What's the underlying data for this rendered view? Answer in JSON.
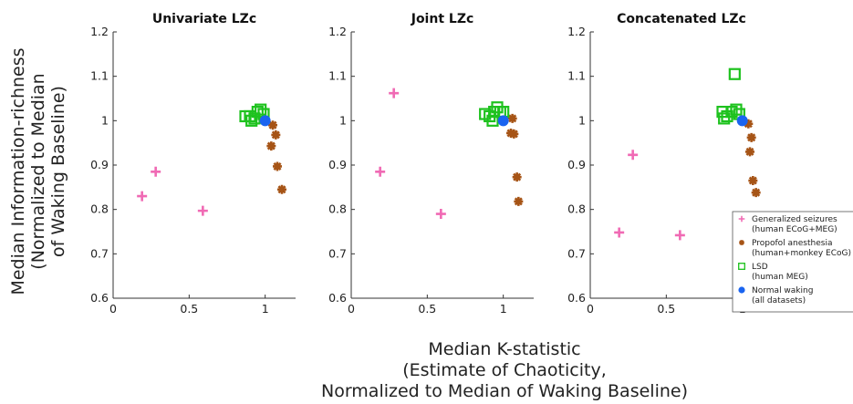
{
  "figure": {
    "ylabel_lines": [
      "Median Information-richness",
      "(Normalized to Median",
      "of Waking Baseline)"
    ],
    "xlabel_lines": [
      "Median K-statistic",
      "(Estimate of Chaoticity,",
      "Normalized to Median of Waking Baseline)"
    ]
  },
  "chart_data": [
    {
      "type": "scatter",
      "title": "Univariate LZc",
      "xlim": [
        0,
        1.2
      ],
      "ylim": [
        0.6,
        1.2
      ],
      "xticks": [
        "0",
        "0.5",
        "1"
      ],
      "yticks": [
        "0.6",
        "0.7",
        "0.8",
        "0.9",
        "1",
        "1.1",
        "1.2"
      ],
      "series": [
        {
          "name": "Generalized seizures (human ECoG+MEG)",
          "marker": "plus",
          "color": "#f06ab4",
          "points": [
            [
              0.19,
              0.83
            ],
            [
              0.28,
              0.885
            ],
            [
              0.59,
              0.797
            ]
          ]
        },
        {
          "name": "Propofol anesthesia (human+monkey ECoG)",
          "marker": "asterisk",
          "color": "#a65416",
          "points": [
            [
              1.05,
              0.99
            ],
            [
              1.07,
              0.968
            ],
            [
              1.04,
              0.943
            ],
            [
              1.08,
              0.897
            ],
            [
              1.11,
              0.845
            ]
          ]
        },
        {
          "name": "LSD (human MEG)",
          "marker": "square",
          "color": "#1ec21e",
          "points": [
            [
              0.87,
              1.01
            ],
            [
              0.9,
              1.01
            ],
            [
              0.93,
              1.005
            ],
            [
              0.95,
              1.02
            ],
            [
              0.97,
              1.025
            ],
            [
              0.99,
              1.015
            ],
            [
              0.91,
              1.0
            ]
          ]
        },
        {
          "name": "Normal waking (all datasets)",
          "marker": "dot",
          "color": "#1a64f0",
          "points": [
            [
              1.0,
              1.0
            ]
          ]
        }
      ]
    },
    {
      "type": "scatter",
      "title": "Joint LZc",
      "xlim": [
        0,
        1.2
      ],
      "ylim": [
        0.6,
        1.2
      ],
      "xticks": [
        "0",
        "0.5",
        "1"
      ],
      "yticks": [
        "0.6",
        "0.7",
        "0.8",
        "0.9",
        "1",
        "1.1",
        "1.2"
      ],
      "series": [
        {
          "name": "Generalized seizures (human ECoG+MEG)",
          "marker": "plus",
          "color": "#f06ab4",
          "points": [
            [
              0.19,
              0.885
            ],
            [
              0.28,
              1.062
            ],
            [
              0.59,
              0.79
            ]
          ]
        },
        {
          "name": "Propofol anesthesia (human+monkey ECoG)",
          "marker": "asterisk",
          "color": "#a65416",
          "points": [
            [
              1.06,
              1.005
            ],
            [
              1.05,
              0.972
            ],
            [
              1.07,
              0.97
            ],
            [
              1.09,
              0.873
            ],
            [
              1.1,
              0.818
            ]
          ]
        },
        {
          "name": "LSD (human MEG)",
          "marker": "square",
          "color": "#1ec21e",
          "points": [
            [
              0.88,
              1.015
            ],
            [
              0.91,
              1.01
            ],
            [
              0.94,
              1.02
            ],
            [
              0.96,
              1.03
            ],
            [
              0.98,
              1.02
            ],
            [
              0.93,
              1.0
            ],
            [
              1.0,
              1.02
            ]
          ]
        },
        {
          "name": "Normal waking (all datasets)",
          "marker": "dot",
          "color": "#1a64f0",
          "points": [
            [
              1.0,
              1.0
            ]
          ]
        }
      ]
    },
    {
      "type": "scatter",
      "title": "Concatenated LZc",
      "xlim": [
        0,
        1.2
      ],
      "ylim": [
        0.6,
        1.2
      ],
      "xticks": [
        "0",
        "0.5",
        "1"
      ],
      "yticks": [
        "0.6",
        "0.7",
        "0.8",
        "0.9",
        "1",
        "1.1",
        "1.2"
      ],
      "legend_position": "lower-right",
      "series": [
        {
          "name": "Generalized seizures (human ECoG+MEG)",
          "marker": "plus",
          "color": "#f06ab4",
          "points": [
            [
              0.19,
              0.748
            ],
            [
              0.28,
              0.923
            ],
            [
              0.59,
              0.742
            ]
          ]
        },
        {
          "name": "Propofol anesthesia (human+monkey ECoG)",
          "marker": "asterisk",
          "color": "#a65416",
          "points": [
            [
              1.04,
              0.993
            ],
            [
              1.06,
              0.962
            ],
            [
              1.05,
              0.93
            ],
            [
              1.07,
              0.865
            ],
            [
              1.09,
              0.838
            ]
          ]
        },
        {
          "name": "LSD (human MEG)",
          "marker": "square",
          "color": "#1ec21e",
          "points": [
            [
              0.87,
              1.02
            ],
            [
              0.9,
              1.01
            ],
            [
              0.93,
              1.02
            ],
            [
              0.96,
              1.025
            ],
            [
              0.98,
              1.015
            ],
            [
              0.88,
              1.005
            ],
            [
              0.95,
              1.105
            ]
          ]
        },
        {
          "name": "Normal waking (all datasets)",
          "marker": "dot",
          "color": "#1a64f0",
          "points": [
            [
              1.0,
              1.0
            ]
          ]
        }
      ]
    }
  ],
  "legend": {
    "entries": [
      {
        "marker": "plus",
        "color": "#f06ab4",
        "line1": "Generalized seizures",
        "line2": "(human ECoG+MEG)"
      },
      {
        "marker": "asterisk",
        "color": "#a65416",
        "line1": "Propofol anesthesia",
        "line2": "(human+monkey ECoG)"
      },
      {
        "marker": "square",
        "color": "#1ec21e",
        "line1": "LSD",
        "line2": "(human MEG)"
      },
      {
        "marker": "dot",
        "color": "#1a64f0",
        "line1": "Normal waking",
        "line2": "(all datasets)"
      }
    ]
  }
}
